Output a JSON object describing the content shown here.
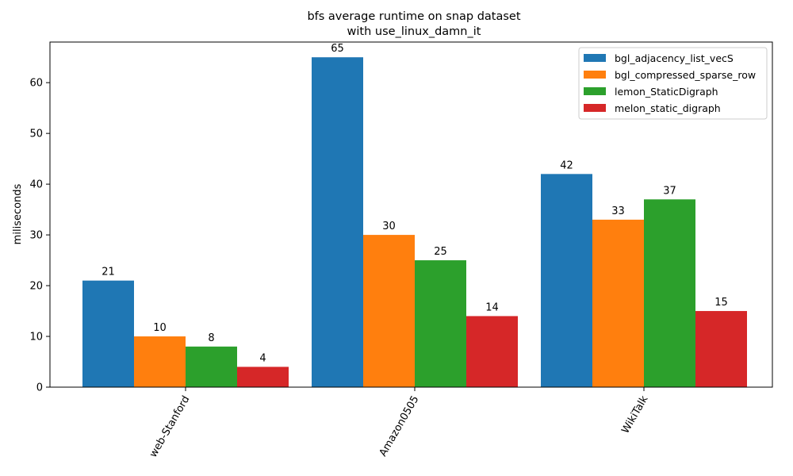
{
  "chart_data": {
    "type": "bar",
    "title_lines": [
      "bfs average runtime on snap dataset",
      "with use_linux_damn_it"
    ],
    "xlabel": "",
    "ylabel": "miliseconds",
    "categories": [
      "web-Stanford",
      "Amazon0505",
      "WikiTalk"
    ],
    "ylim": [
      0,
      68
    ],
    "yticks": [
      0,
      10,
      20,
      30,
      40,
      50,
      60
    ],
    "grid": false,
    "legend_position": "top-right",
    "series": [
      {
        "name": "bgl_adjacency_list_vecS",
        "color": "#1f77b4",
        "values": [
          21,
          65,
          42
        ]
      },
      {
        "name": "bgl_compressed_sparse_row",
        "color": "#ff7f0e",
        "values": [
          10,
          30,
          33
        ]
      },
      {
        "name": "lemon_StaticDigraph",
        "color": "#2ca02c",
        "values": [
          8,
          25,
          37
        ]
      },
      {
        "name": "melon_static_digraph",
        "color": "#d62728",
        "values": [
          4,
          14,
          15
        ]
      }
    ]
  }
}
